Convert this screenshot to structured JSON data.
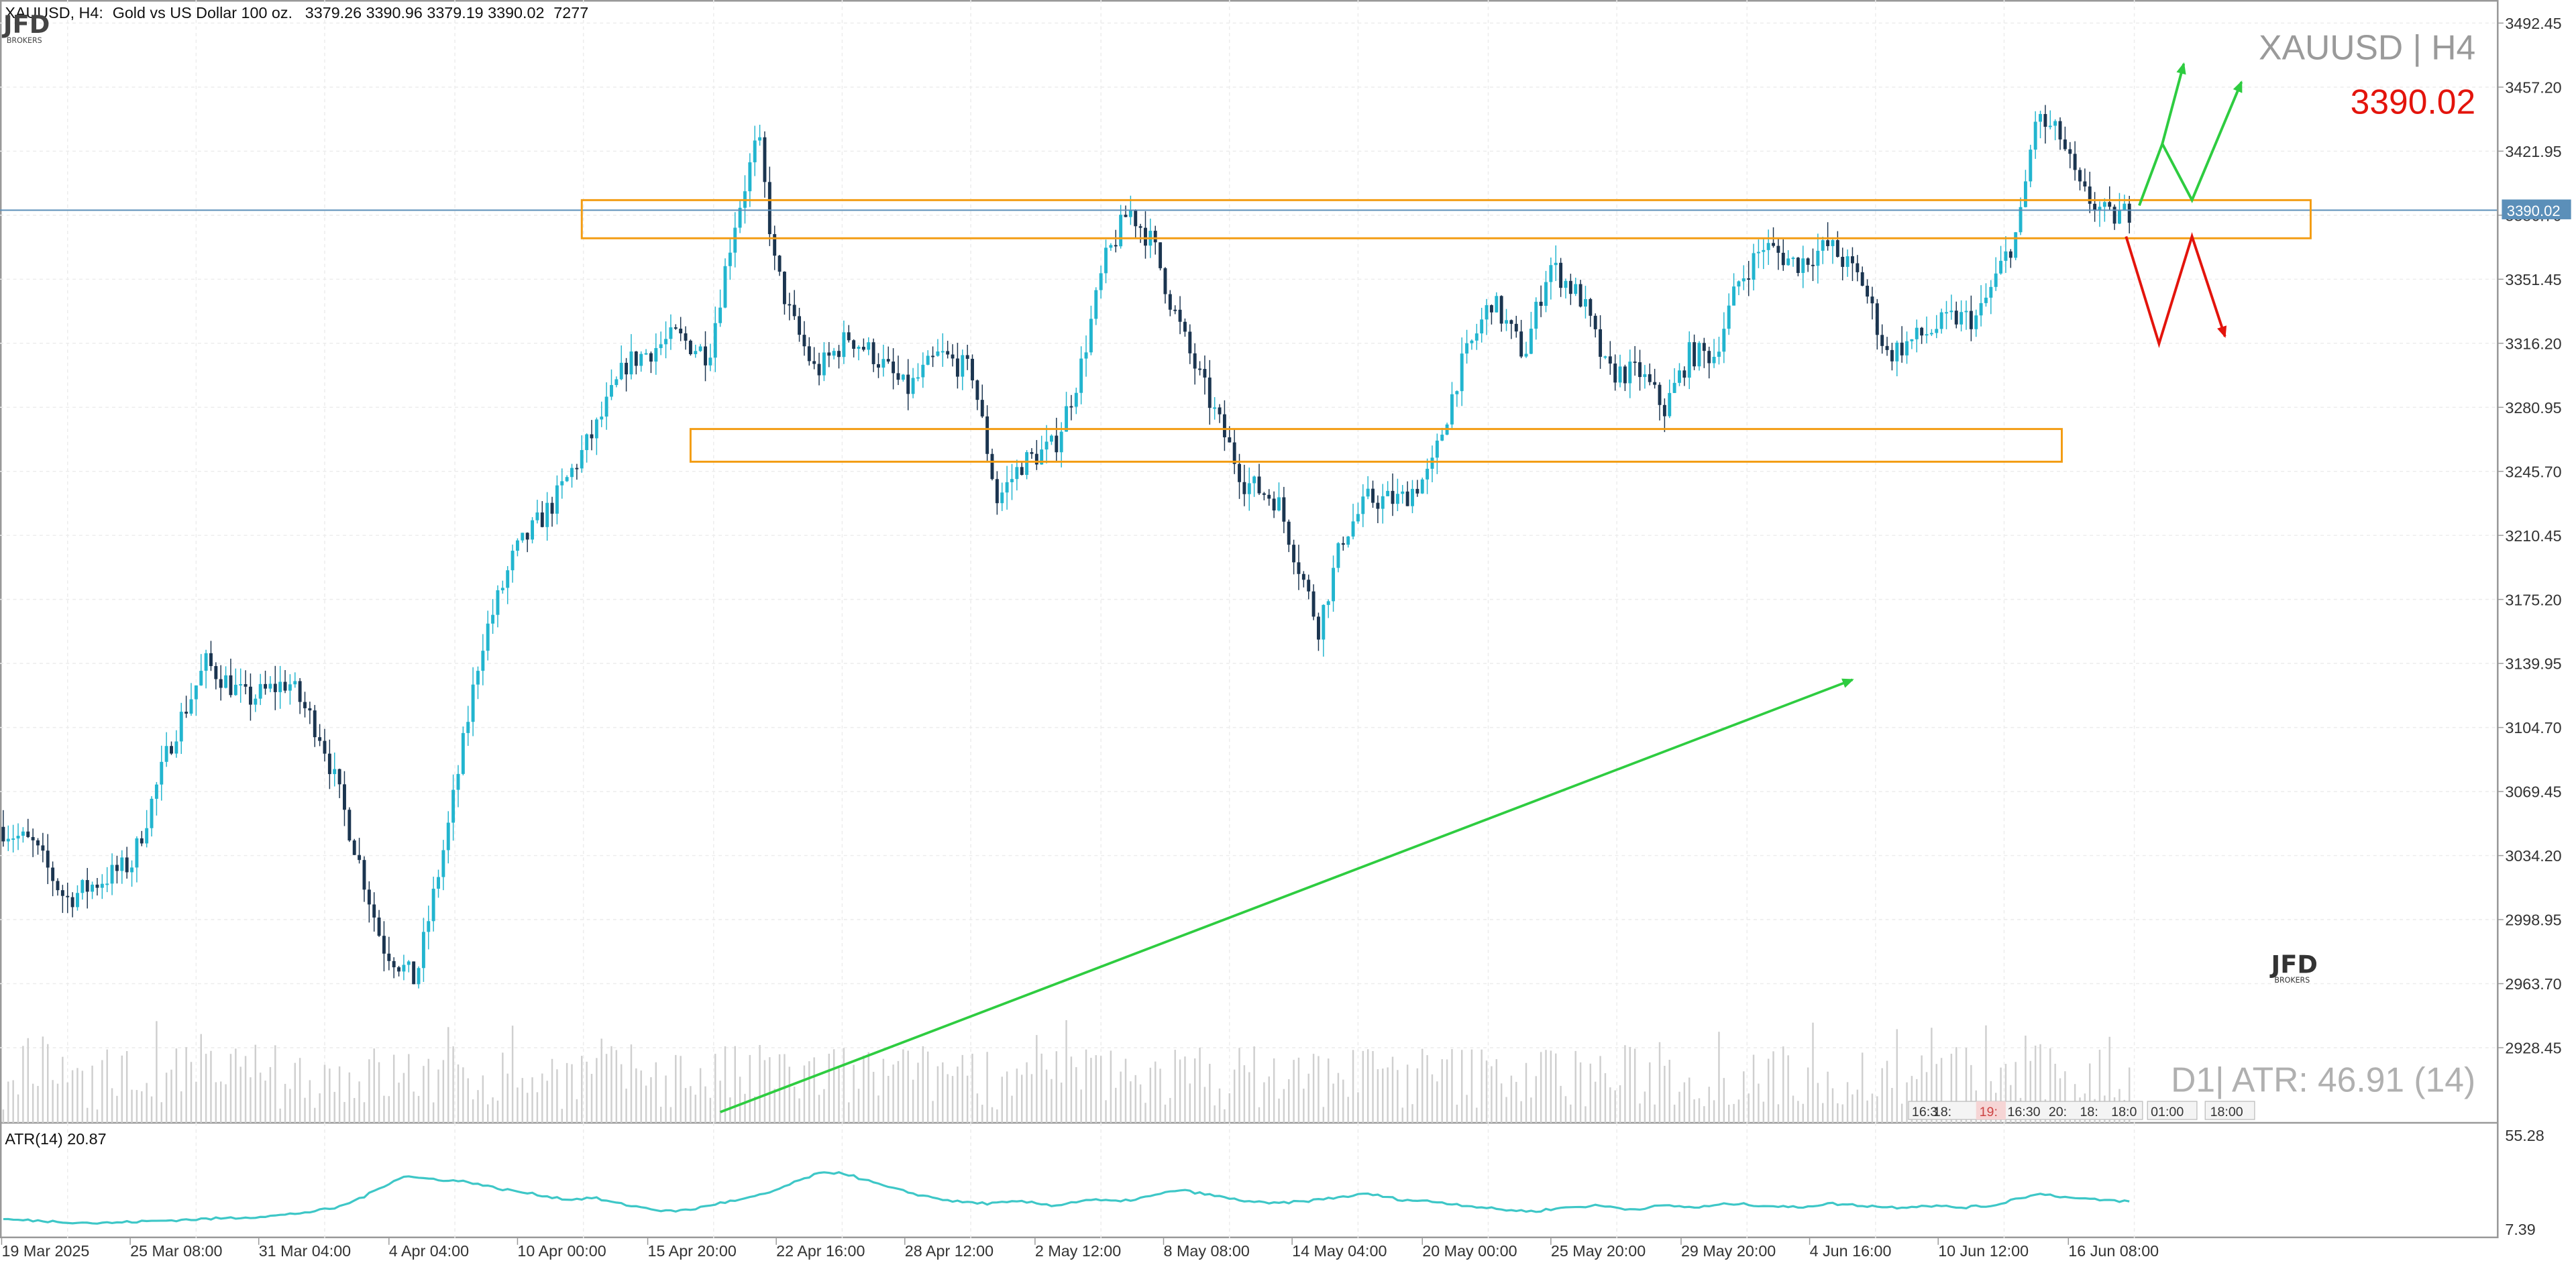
{
  "header": {
    "symbol": "XAUUSD",
    "timeframe": "H4:",
    "description": "Gold vs US Dollar 100 oz.",
    "ohlc": "3379.26 3390.96 3379.19 3390.02",
    "volume": "7277"
  },
  "logo": {
    "text": "JFD",
    "subtext": "BROKERS"
  },
  "overlay": {
    "symbol_tf": "XAUUSD | H4",
    "last_price": "3390.02",
    "atr_info": "D1| ATR: 46.91 (14)",
    "price_tag": "3390.02",
    "time_stubs": [
      "16:3",
      "18:",
      "19:",
      "16:30",
      "20:",
      "18:",
      "18:0",
      "01:00",
      "18:00"
    ]
  },
  "indicator": {
    "label": "ATR(14) 20.87",
    "scale_labels": [
      "55.28",
      "7.39"
    ]
  },
  "colors": {
    "bull": "#22b5cf",
    "bear": "#1b3550",
    "zone": "#f39c12",
    "trend": "#2ecc40",
    "up_scenario": "#2ecc40",
    "down_scenario": "#e3140c",
    "atr_line": "#3ec7c7",
    "price_line": "#5b8fb9",
    "price_red": "#e3140c"
  },
  "chart_data": {
    "type": "candlestick",
    "y_ticks": [
      "3492.45",
      "3457.20",
      "3421.95",
      "3386.70",
      "3351.45",
      "3316.20",
      "3280.95",
      "3245.70",
      "3210.45",
      "3175.20",
      "3139.95",
      "3104.70",
      "3069.45",
      "3034.20",
      "2998.95",
      "2963.70",
      "2928.45"
    ],
    "y_range": [
      2893.2,
      3510.0
    ],
    "x_ticks": [
      "19 Mar 2025",
      "25 Mar 08:00",
      "31 Mar 04:00",
      "4 Apr 04:00",
      "10 Apr 00:00",
      "15 Apr 20:00",
      "22 Apr 16:00",
      "28 Apr 12:00",
      "2 May 12:00",
      "8 May 08:00",
      "14 May 04:00",
      "20 May 00:00",
      "25 May 20:00",
      "29 May 20:00",
      "4 Jun 16:00",
      "10 Jun 12:00",
      "16 Jun 08:00"
    ],
    "last_price": 3390.02,
    "price_path": [
      [
        0,
        3050
      ],
      [
        20,
        3040
      ],
      [
        40,
        3010
      ],
      [
        60,
        3020
      ],
      [
        80,
        3030
      ],
      [
        105,
        3100
      ],
      [
        125,
        3140
      ],
      [
        150,
        3120
      ],
      [
        175,
        3130
      ],
      [
        195,
        3100
      ],
      [
        215,
        3040
      ],
      [
        232,
        2985
      ],
      [
        252,
        2965
      ],
      [
        272,
        3050
      ],
      [
        292,
        3150
      ],
      [
        312,
        3200
      ],
      [
        337,
        3230
      ],
      [
        362,
        3270
      ],
      [
        380,
        3305
      ],
      [
        410,
        3320
      ],
      [
        430,
        3310
      ],
      [
        445,
        3380
      ],
      [
        460,
        3430
      ],
      [
        470,
        3360
      ],
      [
        480,
        3330
      ],
      [
        495,
        3300
      ],
      [
        515,
        3320
      ],
      [
        530,
        3310
      ],
      [
        550,
        3290
      ],
      [
        570,
        3310
      ],
      [
        590,
        3300
      ],
      [
        605,
        3230
      ],
      [
        620,
        3250
      ],
      [
        640,
        3260
      ],
      [
        655,
        3300
      ],
      [
        670,
        3360
      ],
      [
        685,
        3390
      ],
      [
        700,
        3370
      ],
      [
        710,
        3340
      ],
      [
        722,
        3310
      ],
      [
        736,
        3280
      ],
      [
        755,
        3240
      ],
      [
        775,
        3230
      ],
      [
        800,
        3160
      ],
      [
        815,
        3210
      ],
      [
        830,
        3230
      ],
      [
        850,
        3230
      ],
      [
        868,
        3245
      ],
      [
        885,
        3300
      ],
      [
        905,
        3340
      ],
      [
        925,
        3310
      ],
      [
        940,
        3360
      ],
      [
        960,
        3340
      ],
      [
        975,
        3300
      ],
      [
        995,
        3300
      ],
      [
        1010,
        3280
      ],
      [
        1025,
        3310
      ],
      [
        1040,
        3310
      ],
      [
        1055,
        3350
      ],
      [
        1070,
        3370
      ],
      [
        1090,
        3360
      ],
      [
        1110,
        3370
      ],
      [
        1130,
        3350
      ],
      [
        1145,
        3310
      ],
      [
        1165,
        3320
      ],
      [
        1185,
        3330
      ],
      [
        1200,
        3330
      ],
      [
        1210,
        3350
      ],
      [
        1225,
        3380
      ],
      [
        1235,
        3440
      ],
      [
        1250,
        3430
      ],
      [
        1262,
        3400
      ],
      [
        1280,
        3385
      ],
      [
        1295,
        3390
      ]
    ],
    "volume_series": "random bars",
    "atr_series": [
      [
        0,
        12
      ],
      [
        30,
        11
      ],
      [
        60,
        10
      ],
      [
        90,
        11
      ],
      [
        120,
        12
      ],
      [
        150,
        13
      ],
      [
        170,
        14
      ],
      [
        190,
        16
      ],
      [
        205,
        18
      ],
      [
        222,
        24
      ],
      [
        235,
        30
      ],
      [
        245,
        34
      ],
      [
        255,
        33
      ],
      [
        270,
        32
      ],
      [
        285,
        31
      ],
      [
        300,
        28
      ],
      [
        315,
        26
      ],
      [
        330,
        24
      ],
      [
        345,
        22
      ],
      [
        360,
        23
      ],
      [
        375,
        20
      ],
      [
        390,
        18
      ],
      [
        405,
        16
      ],
      [
        420,
        17
      ],
      [
        435,
        20
      ],
      [
        450,
        22
      ],
      [
        465,
        25
      ],
      [
        480,
        30
      ],
      [
        495,
        35
      ],
      [
        510,
        36
      ],
      [
        525,
        32
      ],
      [
        540,
        28
      ],
      [
        560,
        24
      ],
      [
        580,
        21
      ],
      [
        600,
        20
      ],
      [
        620,
        21
      ],
      [
        640,
        19
      ],
      [
        660,
        22
      ],
      [
        680,
        21
      ],
      [
        700,
        24
      ],
      [
        715,
        27
      ],
      [
        730,
        25
      ],
      [
        750,
        22
      ],
      [
        770,
        20
      ],
      [
        790,
        21
      ],
      [
        810,
        23
      ],
      [
        830,
        25
      ],
      [
        850,
        22
      ],
      [
        870,
        21
      ],
      [
        890,
        19
      ],
      [
        910,
        17
      ],
      [
        930,
        16
      ],
      [
        950,
        18
      ],
      [
        970,
        19
      ],
      [
        990,
        17
      ],
      [
        1010,
        19
      ],
      [
        1030,
        18
      ],
      [
        1050,
        20
      ],
      [
        1070,
        19
      ],
      [
        1090,
        18
      ],
      [
        1110,
        20
      ],
      [
        1130,
        19
      ],
      [
        1150,
        18
      ],
      [
        1170,
        19
      ],
      [
        1190,
        18
      ],
      [
        1210,
        19
      ],
      [
        1225,
        23
      ],
      [
        1240,
        25
      ],
      [
        1255,
        23
      ],
      [
        1270,
        22
      ],
      [
        1295,
        21
      ]
    ],
    "atr_range": [
      7.39,
      55.28
    ],
    "zones": [
      {
        "x_start": 353,
        "x_end": 1402,
        "y_top": 3395,
        "y_bottom": 3374
      },
      {
        "x_start": 419,
        "x_end": 1251,
        "y_top": 3269,
        "y_bottom": 3251
      }
    ],
    "trend_arrow": {
      "x_start": 437,
      "y_start": 2893,
      "x_end": 1124,
      "y_end": 3131
    },
    "up_scenario": [
      [
        1298,
        3392
      ],
      [
        1312,
        3426
      ],
      [
        1330,
        3395
      ],
      [
        1360,
        3460
      ]
    ],
    "up_branch": [
      [
        1312,
        3426
      ],
      [
        1325,
        3470
      ]
    ],
    "down_scenario": [
      [
        1290,
        3375
      ],
      [
        1310,
        3316
      ],
      [
        1330,
        3375
      ],
      [
        1350,
        3320
      ]
    ]
  }
}
